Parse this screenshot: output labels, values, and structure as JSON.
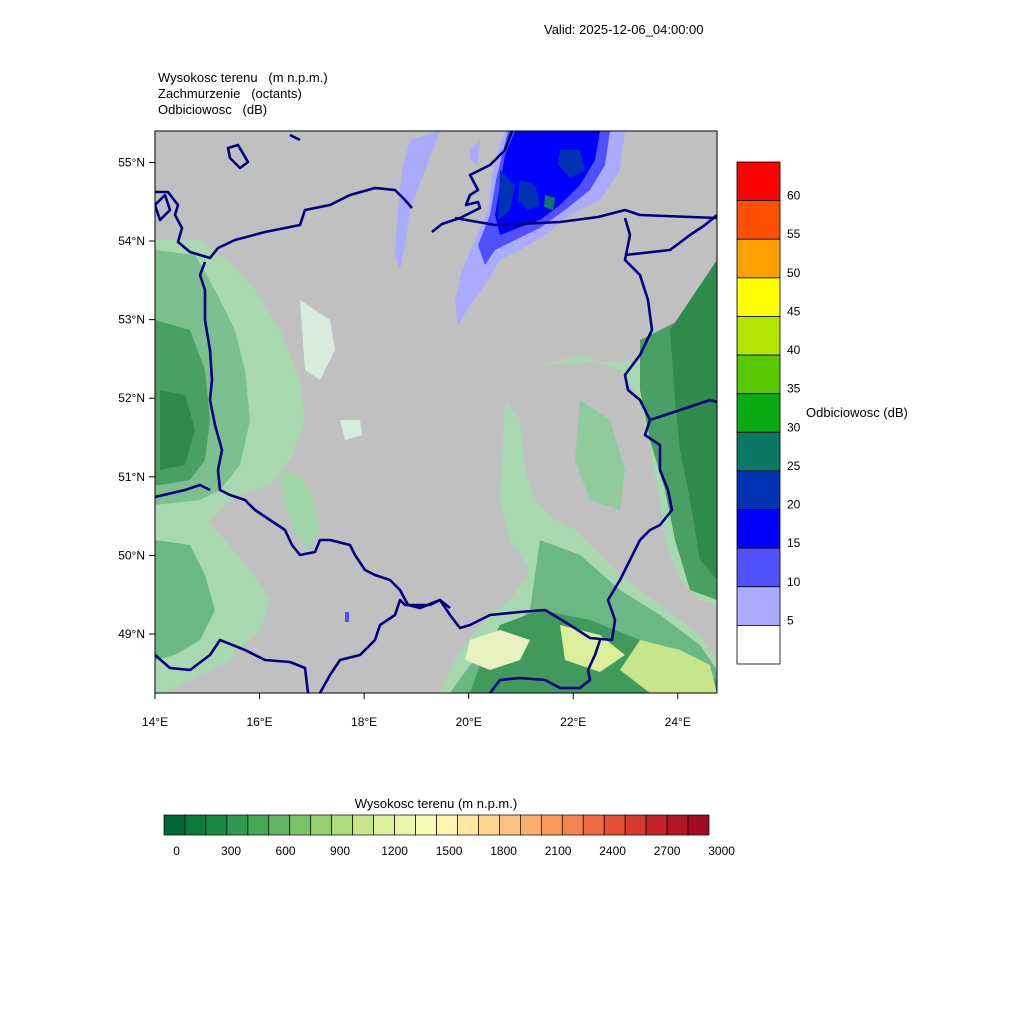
{
  "header": {
    "valid": "Valid: 2025-12-06_04:00:00"
  },
  "titles": [
    "Wysokosc terenu   (m n.p.m.)",
    "Zachmurzenie   (octants)",
    "Odbiciowosc   (dB)"
  ],
  "map": {
    "lon_range": [
      14,
      24.75
    ],
    "lat_range": [
      48.25,
      55.4
    ],
    "lat_ticks": [
      "55°N",
      "54°N",
      "53°N",
      "52°N",
      "51°N",
      "50°N",
      "49°N"
    ],
    "lon_ticks": [
      "14°E",
      "16°E",
      "18°E",
      "20°E",
      "22°E",
      "24°E"
    ],
    "colors": {
      "cloud": "#c0c0c0",
      "border": "#000080"
    }
  },
  "reflectivity_legend": {
    "title": "Odbiciowosc  (dB)",
    "labels": [
      "60",
      "55",
      "50",
      "45",
      "40",
      "35",
      "30",
      "25",
      "20",
      "15",
      "10",
      "5"
    ],
    "colors": [
      "#ff0000",
      "#ff5000",
      "#ffa000",
      "#ffff00",
      "#b4e600",
      "#5ac800",
      "#0aaa14",
      "#0a7864",
      "#0033b4",
      "#0000ff",
      "#5050ff",
      "#aaaaff",
      "#ffffff"
    ]
  },
  "terrain_legend": {
    "title": "Wysokosc terenu  (m n.p.m.)",
    "labels": [
      "0",
      "300",
      "600",
      "900",
      "1200",
      "1500",
      "1800",
      "2100",
      "2400",
      "2700",
      "3000"
    ],
    "colors": [
      "#006837",
      "#0b7a3b",
      "#1a8a44",
      "#2d9a4e",
      "#45a856",
      "#60b660",
      "#7bc368",
      "#96cf70",
      "#b0db7c",
      "#c7e58a",
      "#dbee99",
      "#ebf5a8",
      "#f8fab8",
      "#fff3b0",
      "#fee6a0",
      "#fed690",
      "#fdc37e",
      "#fcaf6d",
      "#f99a5c",
      "#f4834d",
      "#ee6a40",
      "#e45036",
      "#d6392d",
      "#c62428",
      "#b31524",
      "#a00a22"
    ]
  }
}
